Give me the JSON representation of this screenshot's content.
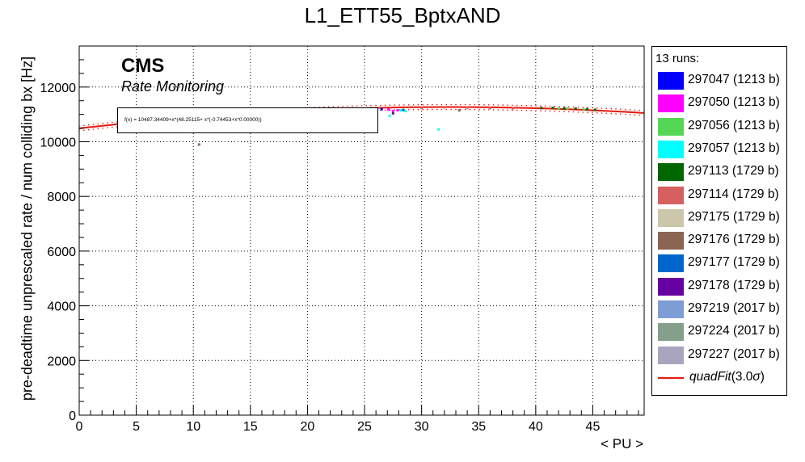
{
  "chart_data": {
    "type": "scatter",
    "title": "L1_ETT55_BptxAND",
    "xlabel": "< PU >",
    "ylabel": "pre-deadtime unprescaled rate / num colliding bx [Hz]",
    "xlim": [
      0,
      49.5
    ],
    "ylim": [
      0,
      13500
    ],
    "x_ticks": [
      0,
      5,
      10,
      15,
      20,
      25,
      30,
      35,
      40,
      45
    ],
    "y_ticks": [
      0,
      2000,
      4000,
      6000,
      8000,
      10000,
      12000
    ],
    "grid": true,
    "legend_position": "right",
    "legend_header": "13 runs:",
    "series": [
      {
        "name": "297047 (1213 b)",
        "color": "#0000ff",
        "x": [
          25.8,
          26.5
        ],
        "y": [
          11170,
          11190
        ]
      },
      {
        "name": "297050 (1213 b)",
        "color": "#ff00ff",
        "x": [
          27.1,
          27.5,
          27.9
        ],
        "y": [
          11180,
          11120,
          11150
        ]
      },
      {
        "name": "297056 (1213 b)",
        "color": "#55d755",
        "x": [
          42,
          42.8,
          43.5,
          44.2
        ],
        "y": [
          11210,
          11220,
          11210,
          11190
        ]
      },
      {
        "name": "297057 (1213 b)",
        "color": "#00ffff",
        "x": [
          27.2,
          28.2,
          28.6,
          31.5
        ],
        "y": [
          10950,
          11150,
          11120,
          10450
        ]
      },
      {
        "name": "297113 (1729 b)",
        "color": "#006600",
        "x": [
          40.5,
          41.5,
          42.5,
          43.5,
          44.5,
          45.2
        ],
        "y": [
          11230,
          11240,
          11220,
          11210,
          11190,
          11170
        ]
      },
      {
        "name": "297114 (1729 b)",
        "color": "#d65f5f",
        "x": [
          30,
          32,
          34,
          36,
          38
        ],
        "y": [
          11240,
          11260,
          11250,
          11240,
          11220
        ]
      },
      {
        "name": "297175 (1729 b)",
        "color": "#ccc6aa",
        "x": [
          22,
          24,
          26
        ],
        "y": [
          11220,
          11230,
          11240
        ]
      },
      {
        "name": "297176 (1729 b)",
        "color": "#8a6552",
        "x": [
          10.5,
          33.3
        ],
        "y": [
          9900,
          11150
        ]
      },
      {
        "name": "297177 (1729 b)",
        "color": "#0066cc",
        "x": [
          28.4
        ],
        "y": [
          11160
        ]
      },
      {
        "name": "297178 (1729 b)",
        "color": "#6600a0",
        "x": [
          27.5
        ],
        "y": [
          11040
        ]
      },
      {
        "name": "297219 (2017 b)",
        "color": "#7e9dd4",
        "x": [
          20,
          21
        ],
        "y": [
          11210,
          11220
        ]
      },
      {
        "name": "297224 (2017 b)",
        "color": "#84a08c",
        "x": [
          18,
          19
        ],
        "y": [
          11180,
          11200
        ]
      },
      {
        "name": "297227 (2017 b)",
        "color": "#aaa5bf",
        "x": [
          16,
          17
        ],
        "y": [
          11150,
          11170
        ]
      }
    ],
    "fit": {
      "name": "quadFit(3.0σ)",
      "name_main": "quadFit",
      "name_paren": "(3.0",
      "name_sigma": "σ",
      "name_close": ")",
      "color": "#e8160c",
      "a": 10487.34409,
      "b": 48.25115,
      "c": -0.74453,
      "x_range": [
        0,
        49.5
      ],
      "formula_text": "f(x) = 10487.34409+x*(48.25115+ x*(-0.74453+x*0.00000))"
    },
    "annotations": {
      "cms": "CMS",
      "rate_monitoring": "Rate Monitoring"
    }
  }
}
